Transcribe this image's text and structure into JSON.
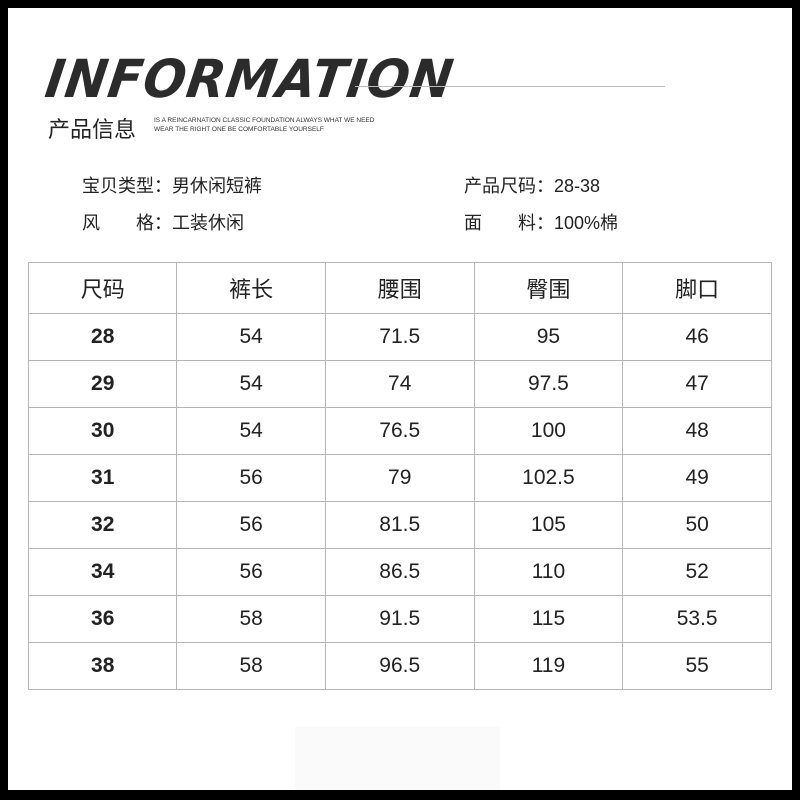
{
  "header": {
    "title": "INFORMATION",
    "subtitle": "产品信息",
    "tagline_1": "IS A REINCARNATION CLASSIC FOUNDATION ALWAYS WHAT WE NEED",
    "tagline_2": "WEAR THE RIGHT ONE BE COMFORTABLE YOURSELF"
  },
  "specs": [
    {
      "label": "宝贝类型：",
      "value": "男休闲短裤"
    },
    {
      "label": "产品尺码：",
      "value": "28-38"
    },
    {
      "label": "风　　格：",
      "value": "工装休闲"
    },
    {
      "label": "面　　料：",
      "value": "100%棉"
    }
  ],
  "table": {
    "headers": [
      "尺码",
      "裤长",
      "腰围",
      "臀围",
      "脚口"
    ],
    "rows": [
      [
        "28",
        "54",
        "71.5",
        "95",
        "46"
      ],
      [
        "29",
        "54",
        "74",
        "97.5",
        "47"
      ],
      [
        "30",
        "54",
        "76.5",
        "100",
        "48"
      ],
      [
        "31",
        "56",
        "79",
        "102.5",
        "49"
      ],
      [
        "32",
        "56",
        "81.5",
        "105",
        "50"
      ],
      [
        "34",
        "56",
        "86.5",
        "110",
        "52"
      ],
      [
        "36",
        "58",
        "91.5",
        "115",
        "53.5"
      ],
      [
        "38",
        "58",
        "96.5",
        "119",
        "55"
      ]
    ]
  }
}
